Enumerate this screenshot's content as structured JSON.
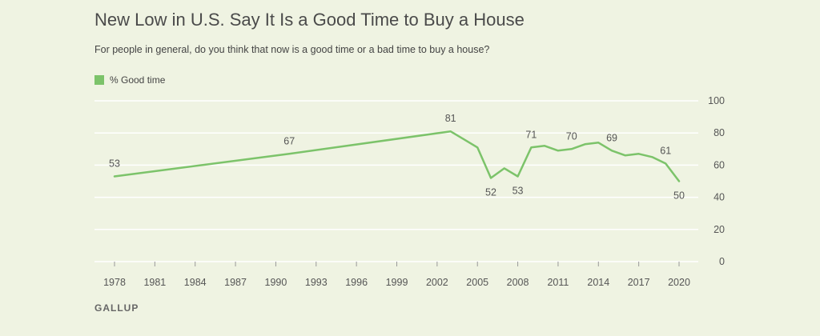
{
  "colors": {
    "background": "#eff3e2",
    "series": "#7cc36a",
    "grid": "#ffffff",
    "text": "#555555"
  },
  "source": "GALLUP",
  "chart_data": {
    "type": "line",
    "title": "New Low in U.S. Say It Is a Good Time to Buy a House",
    "subtitle": "For people in general, do you think that now is a good time or a bad time to buy a house?",
    "legend": {
      "position": "top-left"
    },
    "grid": true,
    "x_ticks": [
      1978,
      1981,
      1984,
      1987,
      1990,
      1993,
      1996,
      1999,
      2002,
      2005,
      2008,
      2011,
      2014,
      2017,
      2020
    ],
    "y_ticks": [
      0,
      20,
      40,
      60,
      80,
      100
    ],
    "xlim": [
      1978,
      2020
    ],
    "ylim": [
      0,
      100
    ],
    "series": [
      {
        "name": "% Good time",
        "color": "#7cc36a",
        "x": [
          1978,
          1991,
          2003,
          2004,
          2005,
          2006,
          2007,
          2008,
          2009,
          2010,
          2011,
          2012,
          2013,
          2014,
          2015,
          2016,
          2017,
          2018,
          2019,
          2020
        ],
        "y": [
          53,
          67,
          81,
          76,
          71,
          52,
          58,
          53,
          71,
          72,
          69,
          70,
          73,
          74,
          69,
          66,
          67,
          65,
          61,
          50
        ]
      }
    ],
    "labels": [
      {
        "x": 1978,
        "y": 53,
        "text": "53",
        "pos": "above"
      },
      {
        "x": 1991,
        "y": 67,
        "text": "67",
        "pos": "above"
      },
      {
        "x": 2003,
        "y": 81,
        "text": "81",
        "pos": "above"
      },
      {
        "x": 2006,
        "y": 52,
        "text": "52",
        "pos": "below"
      },
      {
        "x": 2008,
        "y": 53,
        "text": "53",
        "pos": "below"
      },
      {
        "x": 2009,
        "y": 71,
        "text": "71",
        "pos": "above"
      },
      {
        "x": 2012,
        "y": 70,
        "text": "70",
        "pos": "above"
      },
      {
        "x": 2015,
        "y": 69,
        "text": "69",
        "pos": "above"
      },
      {
        "x": 2019,
        "y": 61,
        "text": "61",
        "pos": "above"
      },
      {
        "x": 2020,
        "y": 50,
        "text": "50",
        "pos": "below"
      }
    ]
  }
}
